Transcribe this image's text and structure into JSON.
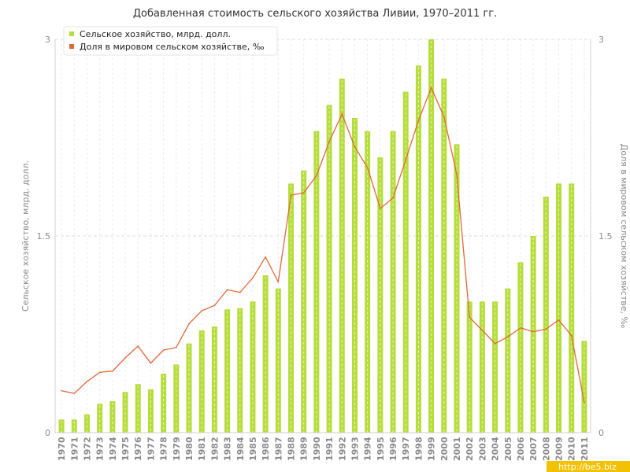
{
  "chart_data": {
    "type": "bar",
    "title": "Добавленная стоимость сельского хозяйства Ливии, 1970–2011 гг.",
    "ylabel": "Сельское хозяйство, млрд. долл.",
    "y2label": "Доля в мировом сельском хозяйстве, ‰",
    "ylim": [
      0,
      3
    ],
    "y2lim": [
      0,
      3
    ],
    "yticks": [
      "0",
      "1.5",
      "3"
    ],
    "y2ticks": [
      "0",
      "1.5",
      "3"
    ],
    "grid": true,
    "legend_position": "top-left",
    "categories": [
      "1970",
      "1971",
      "1972",
      "1973",
      "1974",
      "1975",
      "1976",
      "1977",
      "1978",
      "1979",
      "1980",
      "1981",
      "1982",
      "1983",
      "1984",
      "1985",
      "1986",
      "1987",
      "1988",
      "1989",
      "1990",
      "1991",
      "1992",
      "1993",
      "1994",
      "1995",
      "1996",
      "1997",
      "1998",
      "1999",
      "2000",
      "2001",
      "2002",
      "2003",
      "2004",
      "2005",
      "2006",
      "2007",
      "2008",
      "2009",
      "2010",
      "2011"
    ],
    "series": [
      {
        "name": "Сельское хозяйство, млрд. долл.",
        "type": "bar",
        "color": "#b6dd3b",
        "values": [
          0.1,
          0.1,
          0.14,
          0.22,
          0.24,
          0.31,
          0.37,
          0.33,
          0.45,
          0.52,
          0.68,
          0.78,
          0.81,
          0.94,
          0.95,
          1.0,
          1.2,
          1.1,
          1.9,
          2.0,
          2.3,
          2.5,
          2.7,
          2.4,
          2.3,
          2.1,
          2.3,
          2.6,
          2.8,
          3.0,
          2.7,
          2.2,
          1.0,
          1.0,
          1.0,
          1.1,
          1.3,
          1.5,
          1.8,
          1.9,
          1.9,
          0.7
        ]
      },
      {
        "name": "Доля в мировом сельском хозяйстве, ‰",
        "type": "line",
        "color": "#e0683a",
        "values": [
          0.32,
          0.3,
          0.39,
          0.46,
          0.47,
          0.57,
          0.66,
          0.53,
          0.63,
          0.65,
          0.83,
          0.93,
          0.97,
          1.09,
          1.07,
          1.18,
          1.34,
          1.15,
          1.81,
          1.83,
          1.96,
          2.22,
          2.43,
          2.18,
          2.02,
          1.71,
          1.79,
          2.08,
          2.38,
          2.63,
          2.41,
          1.97,
          0.88,
          0.78,
          0.68,
          0.73,
          0.8,
          0.77,
          0.79,
          0.86,
          0.74,
          0.23
        ]
      }
    ]
  },
  "watermark": "http://be5.biz"
}
